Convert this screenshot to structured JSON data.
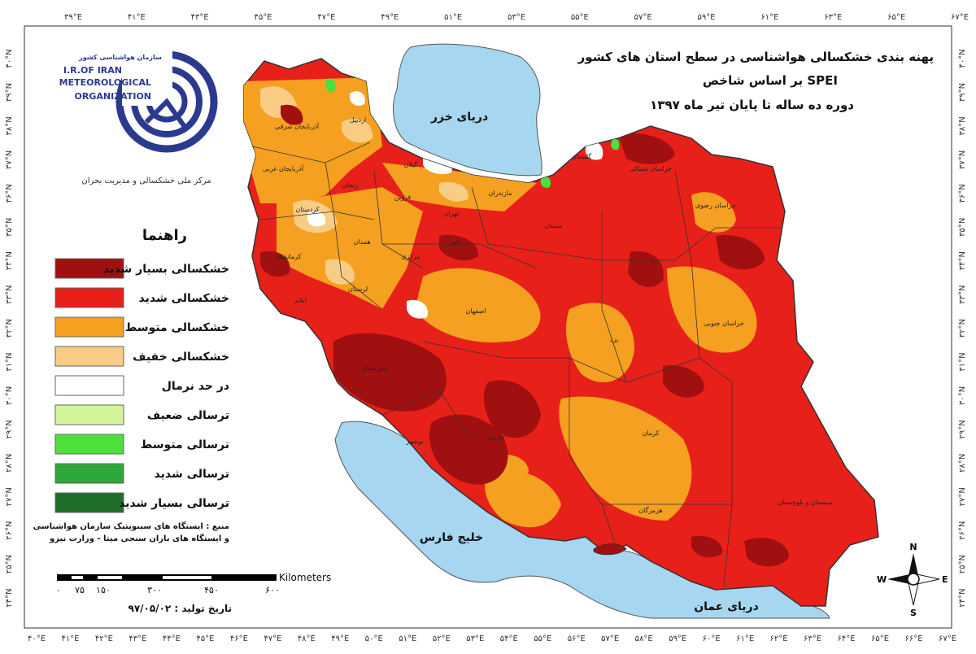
{
  "title": {
    "line1": "پهنه بندی خشکسالی هواشناسی در سطح استان های کشور",
    "line2": "بر اساس شاخص SPEI",
    "line3": "دوره ده ساله تا پایان تیر ماه ۱۳۹۷"
  },
  "logo": {
    "org_fa": "سازمان هواشناسی کشور",
    "line1": "I.R.OF IRAN",
    "line2": "METEOROLOGICAL",
    "line3": "ORGANIZATION",
    "center": "مرکز ملی خشکسالی و مدیریت بحران"
  },
  "legend": {
    "title": "راهنما",
    "items": [
      {
        "label": "خشکسالی بسیار شدید",
        "color": "#a01010"
      },
      {
        "label": "خشکسالی شدید",
        "color": "#e8201a"
      },
      {
        "label": "خشکسالی متوسط",
        "color": "#f5a020"
      },
      {
        "label": "خشکسالی خفیف",
        "color": "#f9cc85"
      },
      {
        "label": "در حد نرمال",
        "color": "#ffffff"
      },
      {
        "label": "ترسالی ضعیف",
        "color": "#d2f59a"
      },
      {
        "label": "ترسالی متوسط",
        "color": "#4ee03a"
      },
      {
        "label": "ترسالی شدید",
        "color": "#2fa83a"
      },
      {
        "label": "ترسالی بسیار شدید",
        "color": "#1e6e2a"
      }
    ]
  },
  "source": {
    "line1": "منبع : ایستگاه های سینوپتیک سازمان هواشناسی",
    "line2": "و ایستگاه های باران سنجی میتا - وزارت نیرو"
  },
  "scalebar": {
    "unit": "Kilometers",
    "ticks": [
      "۰",
      "۷۵",
      "۱۵۰",
      "۳۰۰",
      "۴۵۰",
      "۶۰۰"
    ]
  },
  "date": "تاریخ تولید : ۹۷/۰۵/۰۲",
  "water_labels": {
    "caspian": "دریای خزر",
    "persian_gulf": "خلیج فارس",
    "oman_sea": "دریای عمان"
  },
  "provinces": {
    "east_azerbaijan": "آذربایجان شرقی",
    "west_azerbaijan": "آذربایجان غربی",
    "ardabil": "اردبیل",
    "gilan": "گیلان",
    "mazandaran": "مازندران",
    "golestan": "گلستان",
    "khorasan_shomali": "خراسان شمالی",
    "khorasan_razavi": "خراسان رضوی",
    "khorasan_jonubi": "خراسان جنوبی",
    "zanjan": "زنجان",
    "qazvin": "قزوین",
    "tehran": "تهران",
    "semnan": "سمنان",
    "kurdistan": "کردستان",
    "hamedan": "همدان",
    "kermanshah": "کرمانشاه",
    "markazi": "مرکزی",
    "qom": "قم",
    "lorestan": "لرستان",
    "ilam": "ایلام",
    "isfahan": "اصفهان",
    "yazd": "یزد",
    "khuzestan": "خوزستان",
    "kerman": "کرمان",
    "sistan": "سیستان و بلوچستان",
    "hormozgan": "هرمزگان",
    "fars": "فارس",
    "bushehr": "بوشهر"
  },
  "graticule": {
    "top": [
      "۳۹°E",
      "۴۱°E",
      "۴۳°E",
      "۴۵°E",
      "۴۷°E",
      "۴۹°E",
      "۵۱°E",
      "۵۳°E",
      "۵۵°E",
      "۵۷°E",
      "۵۹°E",
      "۶۱°E",
      "۶۳°E",
      "۶۵°E",
      "۶۷°E"
    ],
    "bottom": [
      "۴۰°E",
      "۴۱°E",
      "۴۲°E",
      "۴۳°E",
      "۴۴°E",
      "۴۵°E",
      "۴۶°E",
      "۴۷°E",
      "۴۸°E",
      "۴۹°E",
      "۵۰°E",
      "۵۱°E",
      "۵۲°E",
      "۵۳°E",
      "۵۴°E",
      "۵۵°E",
      "۵۶°E",
      "۵۷°E",
      "۵۸°E",
      "۵۹°E",
      "۶۰°E",
      "۶۱°E",
      "۶۲°E",
      "۶۳°E",
      "۶۴°E",
      "۶۵°E",
      "۶۶°E",
      "۶۷°E"
    ],
    "left": [
      "۴۰°N",
      "۳۹°N",
      "۳۸°N",
      "۳۷°N",
      "۳۶°N",
      "۳۵°N",
      "۳۴°N",
      "۳۳°N",
      "۳۲°N",
      "۳۱°N",
      "۳۰°N",
      "۲۹°N",
      "۲۸°N",
      "۲۷°N",
      "۲۶°N",
      "۲۵°N",
      "۲۴°N"
    ],
    "right": [
      "۴۰°N",
      "۳۹°N",
      "۳۸°N",
      "۳۷°N",
      "۳۶°N",
      "۳۵°N",
      "۳۴°N",
      "۳۳°N",
      "۳۲°N",
      "۳۱°N",
      "۳۰°N",
      "۲۹°N",
      "۲۸°N",
      "۲۷°N",
      "۲۶°N",
      "۲۵°N",
      "۲۴°N"
    ]
  },
  "compass": {
    "n": "N",
    "s": "S",
    "e": "E",
    "w": "W"
  },
  "colors": {
    "water": "#a6d6f0",
    "neighbor": "#ffffff",
    "very_severe_drought": "#a01010",
    "severe_drought": "#e8201a",
    "moderate_drought": "#f5a020",
    "mild_drought": "#f9cc85",
    "moderate_wet": "#4ee03a"
  }
}
